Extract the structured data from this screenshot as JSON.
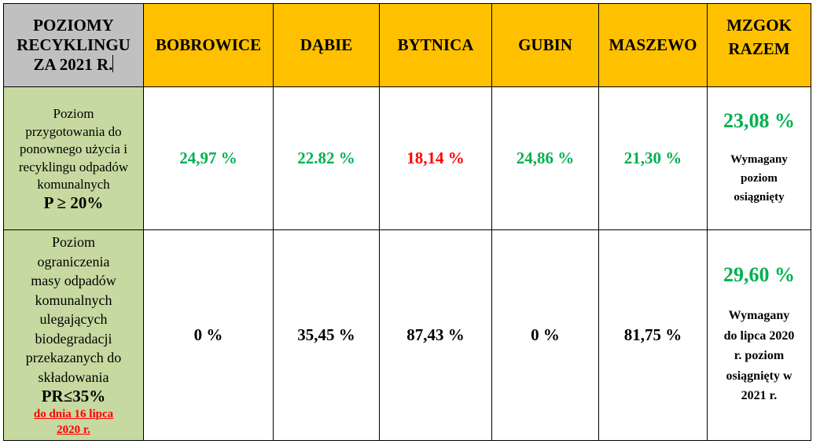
{
  "header": {
    "corner": [
      "POZIOMY",
      "RECYKLINGU",
      "ZA 2021 R."
    ],
    "columns": [
      "BOBROWICE",
      "DĄBIE",
      "BYTNICA",
      "GUBIN",
      "MASZEWO"
    ],
    "total": [
      "MZGOK",
      "RAZEM"
    ]
  },
  "row1": {
    "label_lines": [
      "Poziom",
      "przygotowania do",
      "ponownego użycia i",
      "recyklingu odpadów",
      "komunalnych"
    ],
    "label_threshold": "P ≥ 20%",
    "values": [
      "24,97 %",
      "22.82 %",
      "18,14 %",
      "24,86 %",
      "21,30 %"
    ],
    "value_colors": [
      "#00b050",
      "#00b050",
      "#ff0000",
      "#00b050",
      "#00b050"
    ],
    "total_value": "23,08  %",
    "total_note": [
      "Wymagany",
      "poziom",
      "osiągnięty"
    ]
  },
  "row2": {
    "label_lines": [
      "Poziom",
      "ograniczenia",
      "masy  odpadów",
      "komunalnych",
      "ulegających",
      "biodegradacji",
      "przekazanych do",
      "składowania"
    ],
    "label_threshold": "PR≤35%",
    "label_requirement": [
      "do dnia 16 lipca",
      "2020 r."
    ],
    "values": [
      "0 %",
      "35,45 %",
      "87,43 %",
      "0 %",
      "81,75 %"
    ],
    "value_colors": [
      "#000000",
      "#000000",
      "#000000",
      "#000000",
      "#000000"
    ],
    "total_value": "29,60 %",
    "total_note": [
      "Wymagany",
      "do lipca 2020",
      "r. poziom",
      "osiągnięty w",
      "2021 r."
    ]
  }
}
